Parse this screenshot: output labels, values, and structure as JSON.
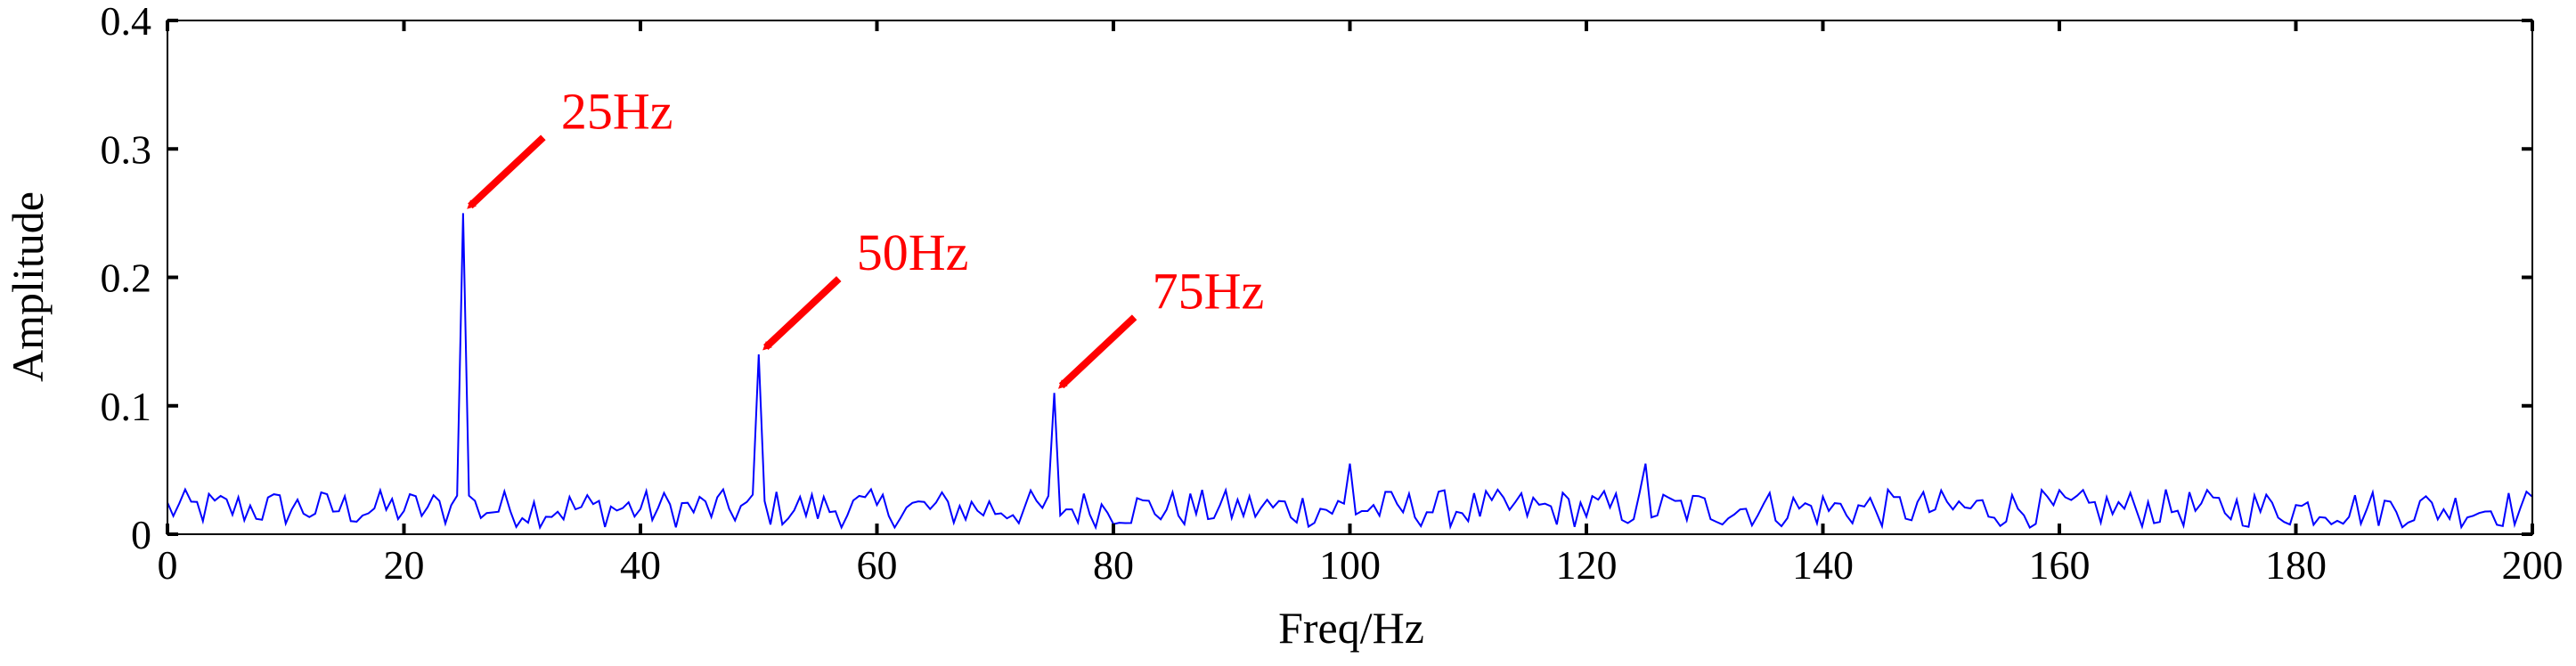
{
  "chart_data": {
    "type": "line",
    "title": "",
    "xlabel": "Freq/Hz",
    "ylabel": "Amplitude",
    "xlim": [
      0,
      200
    ],
    "ylim": [
      0,
      0.4
    ],
    "xticks": [
      0,
      20,
      40,
      60,
      80,
      100,
      120,
      140,
      160,
      180,
      200
    ],
    "yticks": [
      0,
      0.1,
      0.2,
      0.3,
      0.4
    ],
    "xtick_labels": [
      "0",
      "20",
      "40",
      "60",
      "80",
      "100",
      "120",
      "140",
      "160",
      "180",
      "200"
    ],
    "ytick_labels": [
      "0",
      "0.1",
      "0.2",
      "0.3",
      "0.4"
    ],
    "grid": false,
    "series": [
      {
        "name": "spectrum",
        "color": "#0000ff",
        "sample_step": 0.5,
        "noise_range": [
          0.005,
          0.035
        ],
        "peaks": [
          {
            "x": 25,
            "y": 0.25
          },
          {
            "x": 50,
            "y": 0.14
          },
          {
            "x": 75,
            "y": 0.11
          },
          {
            "x": 100,
            "y": 0.055
          },
          {
            "x": 125,
            "y": 0.055
          }
        ]
      }
    ],
    "annotations": [
      {
        "text": "25Hz",
        "x": 25,
        "y": 0.25,
        "color": "#ff0000"
      },
      {
        "text": "50Hz",
        "x": 50,
        "y": 0.14,
        "color": "#ff0000"
      },
      {
        "text": "75Hz",
        "x": 75,
        "y": 0.11,
        "color": "#ff0000"
      }
    ]
  }
}
